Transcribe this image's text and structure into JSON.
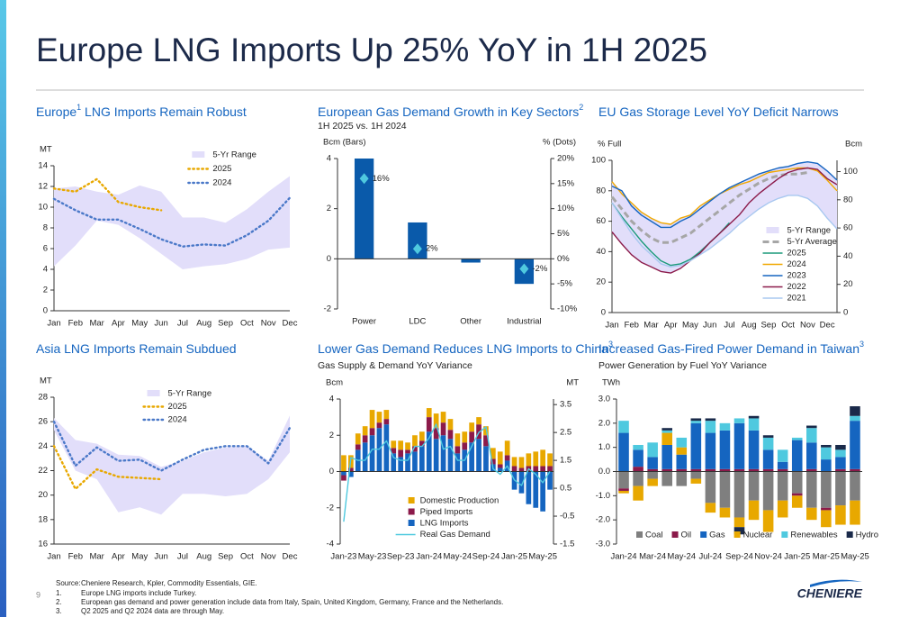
{
  "title": "Europe LNG Imports Up 25% YoY in 1H 2025",
  "footer": {
    "source_label": "Source:",
    "source": "Cheniere Research, Kpler, Commodity Essentials, GIE.",
    "notes": [
      {
        "num": "1.",
        "text": "Europe LNG imports include Turkey."
      },
      {
        "num": "2.",
        "text": "European gas demand and power generation include data from Italy, Spain, United Kingdom, Germany, France and the Netherlands."
      },
      {
        "num": "3.",
        "text": "Q2 2025 and Q2 2024 data are through May."
      }
    ]
  },
  "page_number": "9",
  "logo": "CHENIERE",
  "chart_data": [
    {
      "type": "line",
      "title": [
        {
          "text": "Europe"
        },
        {
          "text": "1",
          "sup": true
        },
        {
          "text": " LNG Imports Remain Robust"
        }
      ],
      "ylabel": "MT",
      "categories": [
        "Jan",
        "Feb",
        "Mar",
        "Apr",
        "May",
        "Jun",
        "Jul",
        "Aug",
        "Sep",
        "Oct",
        "Nov",
        "Dec"
      ],
      "ylim": [
        0,
        14
      ],
      "yticks": [
        0,
        2,
        4,
        6,
        8,
        10,
        12,
        14
      ],
      "legend": "upper right",
      "series": [
        {
          "name": "5-Yr Range",
          "kind": "range",
          "color": "#e2defa",
          "low": [
            4.3,
            6.3,
            8.7,
            8.3,
            7,
            5.5,
            4,
            4.3,
            4.5,
            5,
            5.9,
            6.1
          ],
          "high": [
            11.8,
            12,
            11.5,
            11.2,
            12.1,
            11.5,
            9,
            9,
            8.5,
            9.8,
            11.5,
            13
          ]
        },
        {
          "name": "2025",
          "kind": "line",
          "style": "dotted",
          "color": "#e8a800",
          "values": [
            11.8,
            11.5,
            12.7,
            10.5,
            10,
            9.7,
            null,
            null,
            null,
            null,
            null,
            null
          ]
        },
        {
          "name": "2024",
          "kind": "line",
          "style": "dotted",
          "color": "#4a78c8",
          "values": [
            10.8,
            9.7,
            8.8,
            8.8,
            7.9,
            6.9,
            6.2,
            6.4,
            6.3,
            7.3,
            8.7,
            10.9
          ]
        }
      ]
    },
    {
      "type": "bar",
      "title": [
        {
          "text": "European Gas Demand Growth in Key Sectors"
        },
        {
          "text": "2",
          "sup": true
        }
      ],
      "subtitle": "1H 2025 vs. 1H 2024",
      "ylabel": "Bcm (Bars)",
      "y2label": "% (Dots)",
      "categories": [
        "Power",
        "LDC",
        "Other",
        "Industrial"
      ],
      "ylim": [
        -2,
        4
      ],
      "yticks": [
        -2,
        0,
        2,
        4
      ],
      "y2lim": [
        -10,
        20
      ],
      "y2ticks": [
        {
          "value": -10,
          "label": "-10%"
        },
        {
          "value": -5,
          "label": "-5%"
        },
        {
          "value": 0,
          "label": "0%"
        },
        {
          "value": 5,
          "label": "5%"
        },
        {
          "value": 10,
          "label": "10%"
        },
        {
          "value": 15,
          "label": "15%"
        },
        {
          "value": 20,
          "label": "20%"
        }
      ],
      "series": [
        {
          "name": "Bcm",
          "kind": "bar",
          "color": "#0a5aaa",
          "values": [
            4.0,
            1.45,
            -0.15,
            -1.0
          ]
        },
        {
          "name": "%",
          "kind": "dot",
          "axis": "y2",
          "color": "#4fc9df",
          "values": [
            16,
            2,
            null,
            -2
          ],
          "value_labels": [
            "16%",
            "2%",
            null,
            "-2%"
          ]
        }
      ]
    },
    {
      "type": "line",
      "title": [
        {
          "text": "EU Gas Storage Level YoY Deficit Narrows"
        }
      ],
      "ylabel": "% Full",
      "y2label": "Bcm",
      "categories": [
        "Jan",
        null,
        "Feb",
        null,
        "Mar",
        null,
        "Apr",
        null,
        "May",
        null,
        "Jun",
        null,
        "Jul",
        null,
        "Aug",
        null,
        "Sep",
        null,
        "Oct",
        null,
        "Nov",
        null,
        "Dec",
        null
      ],
      "ylim": [
        0,
        100
      ],
      "yticks": [
        0,
        20,
        40,
        60,
        80,
        100
      ],
      "y2lim": [
        0,
        108
      ],
      "y2ticks": [
        0,
        20,
        40,
        60,
        80,
        100
      ],
      "legend": "lower right",
      "series": [
        {
          "name": "5-Yr Range",
          "kind": "range",
          "color": "#e2defa",
          "low": [
            53,
            45,
            38,
            33,
            30,
            27,
            26,
            29,
            34,
            38,
            42,
            47,
            52,
            58,
            63,
            68,
            72,
            75,
            77,
            77,
            75,
            70,
            62,
            55
          ],
          "high": [
            86,
            80,
            72,
            66,
            62,
            59,
            58,
            62,
            64,
            70,
            74,
            78,
            82,
            85,
            88,
            91,
            93,
            95,
            96,
            98,
            99,
            98,
            93,
            87
          ]
        },
        {
          "name": "5-Yr Average",
          "kind": "line",
          "style": "dashed",
          "color": "#a6a6a6",
          "values": [
            76,
            68,
            60,
            54,
            49,
            46,
            46,
            49,
            52,
            57,
            62,
            67,
            72,
            77,
            81,
            85,
            88,
            90,
            91,
            91,
            92,
            null,
            null,
            null
          ]
        },
        {
          "name": "2025",
          "kind": "line",
          "style": "solid",
          "color": "#1a9a7a",
          "values": [
            72,
            63,
            55,
            47,
            40,
            34,
            31,
            32,
            35,
            40,
            46,
            52,
            59,
            null,
            null,
            null,
            null,
            null,
            null,
            null,
            null,
            null,
            null,
            null
          ]
        },
        {
          "name": "2024",
          "kind": "line",
          "style": "solid",
          "color": "#f0a800",
          "values": [
            86,
            78,
            72,
            66,
            62,
            59,
            58,
            62,
            64,
            70,
            74,
            78,
            81,
            84,
            86,
            89,
            92,
            93,
            94,
            95,
            95,
            93,
            87,
            80
          ]
        },
        {
          "name": "2023",
          "kind": "line",
          "style": "solid",
          "color": "#1565c0",
          "values": [
            83,
            80,
            70,
            64,
            60,
            56,
            56,
            60,
            63,
            68,
            73,
            78,
            82,
            85,
            88,
            91,
            93,
            95,
            96,
            98,
            99,
            98,
            93,
            87
          ]
        },
        {
          "name": "2022",
          "kind": "line",
          "style": "solid",
          "color": "#8b1a4a",
          "values": [
            53,
            45,
            38,
            33,
            30,
            27,
            26,
            29,
            34,
            39,
            46,
            52,
            58,
            64,
            72,
            78,
            83,
            88,
            92,
            94,
            95,
            94,
            88,
            84
          ]
        },
        {
          "name": "2021",
          "kind": "line",
          "style": "solid",
          "color": "#a8c8f0",
          "values": [
            72,
            62,
            52,
            44,
            38,
            32,
            30,
            31,
            34,
            38,
            42,
            47,
            52,
            58,
            63,
            68,
            72,
            75,
            77,
            77,
            75,
            70,
            62,
            55
          ]
        }
      ]
    },
    {
      "type": "line",
      "title": [
        {
          "text": "Asia LNG Imports Remain Subdued"
        }
      ],
      "ylabel": "MT",
      "categories": [
        "Jan",
        "Feb",
        "Mar",
        "Apr",
        "May",
        "Jun",
        "Jul",
        "Aug",
        "Sep",
        "Oct",
        "Nov",
        "Dec"
      ],
      "ylim": [
        16,
        28
      ],
      "yticks": [
        16,
        18,
        20,
        22,
        24,
        26,
        28
      ],
      "legend": "upper center",
      "series": [
        {
          "name": "5-Yr Range",
          "kind": "range",
          "color": "#e2defa",
          "low": [
            25.3,
            22,
            21.3,
            18.6,
            19,
            18.4,
            20.1,
            20.1,
            19.9,
            20.1,
            21.3,
            23.5
          ],
          "high": [
            26.3,
            24.5,
            24.2,
            23.3,
            23.2,
            22.3,
            22.8,
            23.5,
            23.9,
            24,
            22.8,
            26.5
          ]
        },
        {
          "name": "2025",
          "kind": "line",
          "style": "dotted",
          "color": "#e8a800",
          "values": [
            24,
            20.5,
            22.1,
            21.5,
            21.4,
            21.3,
            null,
            null,
            null,
            null,
            null,
            null
          ]
        },
        {
          "name": "2024",
          "kind": "line",
          "style": "dotted",
          "color": "#4a78c8",
          "values": [
            26,
            22.4,
            23.9,
            22.8,
            22.9,
            22,
            22.9,
            23.7,
            24,
            24,
            22.6,
            25.5
          ]
        }
      ]
    },
    {
      "type": "bar",
      "stack": "reverse",
      "title": [
        {
          "text": "Lower Gas Demand Reduces LNG Imports to China"
        },
        {
          "text": "3",
          "sup": true
        }
      ],
      "subtitle": "Gas Supply & Demand YoY Variance",
      "ylabel": "Bcm",
      "y2label": "MT",
      "legend": "lower center",
      "categories": [
        "Jan-23",
        null,
        null,
        null,
        "May-23",
        null,
        null,
        null,
        "Sep-23",
        null,
        null,
        null,
        "Jan-24",
        null,
        null,
        null,
        "May-24",
        null,
        null,
        null,
        "Sep-24",
        null,
        null,
        null,
        "Jan-25",
        null,
        null,
        null,
        "May-25",
        null
      ],
      "ylim": [
        -4,
        4
      ],
      "yticks": [
        -4,
        -2,
        0,
        2,
        4
      ],
      "y2lim": [
        -1.5,
        3.7
      ],
      "y2ticks": [
        -1.5,
        -0.5,
        0.5,
        1.5,
        2.5,
        3.5
      ],
      "series": [
        {
          "name": "Domestic Production",
          "kind": "bar",
          "color": "#e8a800",
          "values": [
            0.9,
            0.7,
            0.6,
            0.5,
            1.0,
            0.6,
            0.5,
            0.4,
            0.5,
            0.4,
            0.6,
            0.5,
            0.5,
            0.8,
            0.6,
            0.6,
            0.7,
            0.6,
            0.5,
            0.4,
            0.5,
            0.6,
            0.7,
            0.8,
            0.5,
            0.6,
            0.7,
            0.8,
            0.9,
            0.7
          ]
        },
        {
          "name": "Piped Imports",
          "kind": "bar",
          "color": "#8b1a4a",
          "values": [
            -0.3,
            0.2,
            0.3,
            0.4,
            0.4,
            0.3,
            0.3,
            0.3,
            0.4,
            0.2,
            0.3,
            0.3,
            0.8,
            0.6,
            0.7,
            0.5,
            0.4,
            0.4,
            0.6,
            0.8,
            0.6,
            0.3,
            0.2,
            0.3,
            0.3,
            0.2,
            0.3,
            0.3,
            0.3,
            0.3
          ]
        },
        {
          "name": "LNG Imports",
          "kind": "bar",
          "color": "#1565c0",
          "values": [
            -0.2,
            -0.3,
            1.2,
            1.6,
            2.0,
            2.4,
            2.6,
            1.0,
            0.8,
            1.0,
            1.1,
            1.4,
            2.2,
            1.8,
            2.0,
            1.8,
            1.0,
            1.2,
            1.6,
            1.8,
            1.4,
            0.4,
            0.2,
            0.6,
            -1.0,
            -1.2,
            -1.8,
            -2.0,
            -2.2,
            -1.0
          ]
        },
        {
          "name": "Real Gas Demand",
          "kind": "line",
          "style": "solid",
          "axis": "y2",
          "color": "#4fc9df",
          "values": [
            -0.7,
            1.6,
            1.5,
            1.5,
            1.9,
            1.9,
            2.2,
            1.6,
            1.5,
            1.5,
            2.0,
            2.0,
            2.3,
            2.8,
            1.9,
            2.0,
            1.5,
            1.5,
            2.0,
            2.5,
            2.7,
            1.2,
            1.0,
            1.3,
            0.8,
            0.6,
            1.2,
            1.0,
            0.7,
            1.1
          ]
        }
      ]
    },
    {
      "type": "bar",
      "stack": "forward",
      "title": [
        {
          "text": "Increased Gas-Fired Power Demand in Taiwan"
        },
        {
          "text": "3",
          "sup": true
        }
      ],
      "subtitle": "Power Generation by Fuel YoY Variance",
      "ylabel": "TWh",
      "legend": "bottom",
      "categories": [
        "Jan-24",
        null,
        "Mar-24",
        null,
        "May-24",
        null,
        "Jul-24",
        null,
        "Sep-24",
        null,
        "Nov-24",
        null,
        "Jan-25",
        null,
        "Mar-25",
        null,
        "May-25"
      ],
      "ylim": [
        -3,
        3
      ],
      "yticks": [
        {
          "value": -3,
          "label": "-3.0"
        },
        {
          "value": -2,
          "label": "-2.0"
        },
        {
          "value": -1,
          "label": "-1.0"
        },
        {
          "value": 0,
          "label": "0.0"
        },
        {
          "value": 1,
          "label": "1.0"
        },
        {
          "value": 2,
          "label": "2.0"
        },
        {
          "value": 3,
          "label": "3.0"
        }
      ],
      "series": [
        {
          "name": "Coal",
          "kind": "bar",
          "color": "#7f7f7f",
          "values": [
            -0.7,
            -0.6,
            -0.3,
            -0.6,
            -0.6,
            -0.3,
            -1.3,
            -1.5,
            -1.9,
            -1.2,
            -1.6,
            -1.2,
            -0.9,
            -1.5,
            -1.5,
            -1.4,
            -1.2
          ]
        },
        {
          "name": "Oil",
          "kind": "bar",
          "color": "#8b1a4a",
          "values": [
            -0.1,
            0.2,
            0.1,
            0.1,
            0.1,
            0.1,
            0.1,
            0.1,
            0.1,
            0.1,
            0.1,
            0.1,
            -0.1,
            0.1,
            -0.1,
            0.1,
            0.1
          ]
        },
        {
          "name": "Gas",
          "kind": "bar",
          "color": "#1565c0",
          "values": [
            1.6,
            0.7,
            0.5,
            1.0,
            0.6,
            1.9,
            1.5,
            1.6,
            1.9,
            1.6,
            0.8,
            0.3,
            1.3,
            1.1,
            0.5,
            0.5,
            2.0
          ]
        },
        {
          "name": "Nuclear",
          "kind": "bar",
          "color": "#e8a800",
          "values": [
            -0.1,
            -0.6,
            -0.3,
            0.5,
            0.3,
            -0.2,
            -0.4,
            -0.4,
            -0.4,
            -0.8,
            -0.9,
            -0.7,
            -0.5,
            -0.5,
            -0.7,
            -0.8,
            -1.0
          ]
        },
        {
          "name": "Renewables",
          "kind": "bar",
          "color": "#4fc9df",
          "values": [
            0.5,
            0.2,
            0.6,
            0.1,
            0.4,
            0.1,
            0.5,
            0.3,
            0.2,
            0.5,
            0.5,
            0.5,
            0.1,
            0.6,
            0.5,
            0.3,
            0.2
          ]
        },
        {
          "name": "Hydro",
          "kind": "bar",
          "color": "#1a2a4a",
          "values": [
            0,
            0,
            0,
            0.1,
            0,
            0.1,
            0.1,
            0,
            -0.3,
            0.1,
            0.1,
            0,
            0,
            0.1,
            0.1,
            0.2,
            0.4
          ]
        }
      ]
    }
  ]
}
